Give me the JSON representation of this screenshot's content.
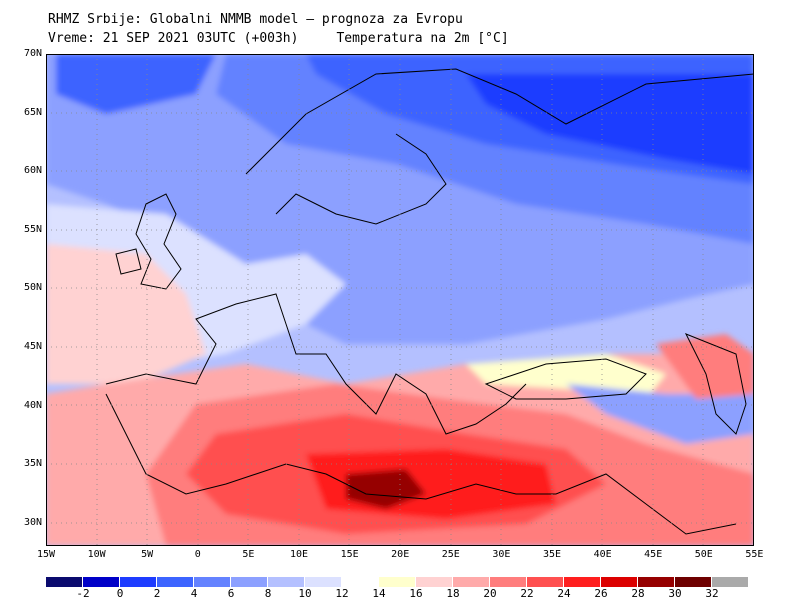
{
  "header": {
    "title": "RHMZ Srbije: Globalni NMMB model — prognoza za Evropu",
    "time": "Vreme: 21 SEP 2021 03UTC (+003h)",
    "field": "Temperatura na 2m [°C]"
  },
  "map": {
    "lat_labels": [
      "70N",
      "65N",
      "60N",
      "55N",
      "50N",
      "45N",
      "40N",
      "35N",
      "30N"
    ],
    "lon_labels": [
      "15W",
      "10W",
      "5W",
      "0",
      "5E",
      "10E",
      "15E",
      "20E",
      "25E",
      "30E",
      "35E",
      "40E",
      "45E",
      "50E",
      "55E"
    ],
    "lon_range": [
      -15,
      55
    ],
    "lat_range": [
      28,
      70
    ]
  },
  "legend": {
    "colors": [
      "#0a0a6e",
      "#0000c8",
      "#1e3cff",
      "#3c64ff",
      "#6482ff",
      "#8ca0ff",
      "#b4c0ff",
      "#dce1ff",
      "#ffffff",
      "#ffffcd",
      "#ffd2d2",
      "#ffaaaa",
      "#ff7d7d",
      "#ff5050",
      "#ff1e1e",
      "#dc0000",
      "#960000",
      "#6e0000",
      "#aaaaaa"
    ],
    "ticks": [
      "-2",
      "0",
      "2",
      "4",
      "6",
      "8",
      "10",
      "12",
      "14",
      "16",
      "18",
      "20",
      "22",
      "24",
      "26",
      "28",
      "30",
      "32"
    ]
  }
}
